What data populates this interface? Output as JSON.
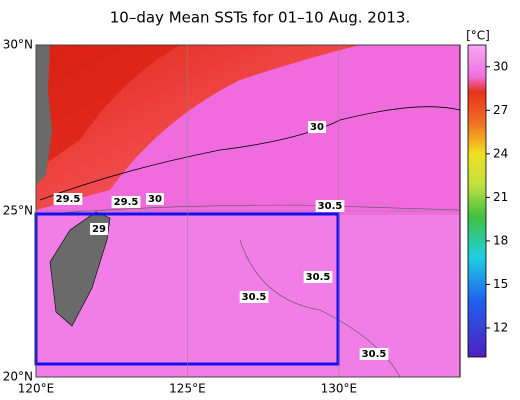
{
  "title": "10–day Mean SSTs for 01–10 Aug. 2013.",
  "map": {
    "lon_range": [
      120,
      134
    ],
    "lat_range": [
      20,
      30
    ],
    "lat_ticks": [
      {
        "value": 30,
        "label": "30°N"
      },
      {
        "value": 25,
        "label": "25°N"
      },
      {
        "value": 20,
        "label": "20°N"
      }
    ],
    "lon_ticks": [
      {
        "value": 120,
        "label": "120°E"
      },
      {
        "value": 125,
        "label": "125°E"
      },
      {
        "value": 130,
        "label": "130°E"
      }
    ],
    "contour_labels": [
      "29.5",
      "29.5",
      "30",
      "29",
      "30",
      "30.5",
      "30.5",
      "30.5",
      "30.5"
    ]
  },
  "colorbar": {
    "unit": "[°C]",
    "range": [
      10,
      31.5
    ],
    "ticks": [
      30,
      27,
      24,
      21,
      18,
      15,
      12
    ]
  }
}
